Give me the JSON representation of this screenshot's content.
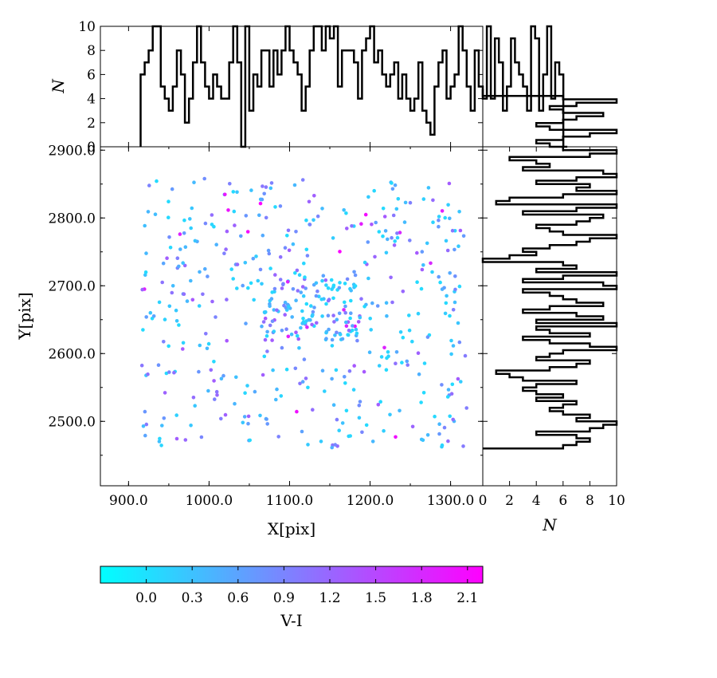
{
  "chart_data": [
    {
      "type": "scatter",
      "xlabel": "X[pix]",
      "ylabel": "Y[pix]",
      "xlim": [
        865,
        1340
      ],
      "ylim": [
        2405,
        2905
      ],
      "xticks": [
        "900.0",
        "1000.0",
        "1100.0",
        "1200.0",
        "1300.0"
      ],
      "yticks": [
        "2500.0",
        "2600.0",
        "2700.0",
        "2800.0",
        "2900.0"
      ],
      "colorscale": "cool",
      "color_column": "V-I",
      "num_points": 560,
      "x_range_points": [
        915,
        1320
      ],
      "y_range_points": [
        2460,
        2860
      ],
      "approx_color_range": [
        -0.3,
        2.2
      ],
      "note_points": "dense field of ~560 stars; values shown as cyan-to-magenta colored dots",
      "grid": false,
      "legend": "none"
    },
    {
      "type": "histogram",
      "orientation": "vertical-steps",
      "ylabel": "N",
      "xlim": [
        865,
        1340
      ],
      "ylim": [
        0,
        10
      ],
      "yticks": [
        "0",
        "2",
        "4",
        "6",
        "8",
        "10"
      ],
      "bin_width": 5,
      "bin_start": 915,
      "counts": [
        6,
        7,
        8,
        10,
        10,
        5,
        4,
        3,
        5,
        8,
        6,
        2,
        4,
        7,
        10,
        7,
        5,
        4,
        6,
        5,
        4,
        4,
        7,
        10,
        7,
        0,
        10,
        3,
        6,
        5,
        8,
        8,
        5,
        8,
        6,
        8,
        10,
        8,
        7,
        6,
        3,
        5,
        8,
        10,
        10,
        8,
        10,
        9,
        10,
        5,
        8,
        8,
        8,
        7,
        4,
        8,
        9,
        10,
        7,
        8,
        6,
        5,
        6,
        7,
        4,
        6,
        4,
        3,
        4,
        7,
        3,
        2,
        1,
        5,
        7,
        8,
        4,
        5,
        6,
        10,
        8,
        5,
        3,
        8,
        5,
        4,
        10,
        4,
        9,
        7,
        3,
        5,
        9,
        7,
        6,
        5,
        3,
        10,
        9,
        3,
        6,
        10,
        4,
        7,
        6,
        0
      ]
    },
    {
      "type": "histogram",
      "orientation": "horizontal-steps",
      "xlabel": "N",
      "xlim": [
        0,
        10
      ],
      "ylim": [
        2405,
        2905
      ],
      "xticks": [
        "0",
        "2",
        "4",
        "6",
        "8",
        "10"
      ],
      "bin_width": 5,
      "bin_start": 2460,
      "counts": [
        6,
        7,
        8,
        7,
        4,
        8,
        9,
        10,
        7,
        8,
        6,
        5,
        6,
        7,
        4,
        6,
        4,
        3,
        4,
        7,
        3,
        2,
        1,
        5,
        7,
        8,
        4,
        5,
        6,
        10,
        8,
        5,
        3,
        8,
        5,
        4,
        10,
        4,
        9,
        7,
        3,
        5,
        9,
        7,
        6,
        5,
        3,
        10,
        9,
        3,
        6,
        10,
        4,
        7,
        6,
        0,
        2,
        4,
        3,
        5,
        7,
        8,
        10,
        6,
        5,
        4,
        7,
        8,
        9,
        3,
        7,
        10,
        1,
        2,
        6,
        10,
        7,
        8,
        4,
        7,
        10,
        9,
        3,
        5,
        4,
        2,
        8,
        10,
        6,
        5,
        4,
        6,
        8,
        10,
        5,
        4,
        6,
        7,
        9,
        6,
        5,
        7,
        10,
        6,
        0,
        0
      ]
    },
    {
      "type": "colorbar",
      "label": "V-I",
      "colorscale": "cool",
      "range": [
        -0.3,
        2.2
      ],
      "ticks": [
        "0.0",
        "0.3",
        "0.6",
        "0.9",
        "1.2",
        "1.5",
        "1.8",
        "2.1"
      ],
      "tick_values": [
        0.0,
        0.3,
        0.6,
        0.9,
        1.2,
        1.5,
        1.8,
        2.1
      ]
    }
  ]
}
